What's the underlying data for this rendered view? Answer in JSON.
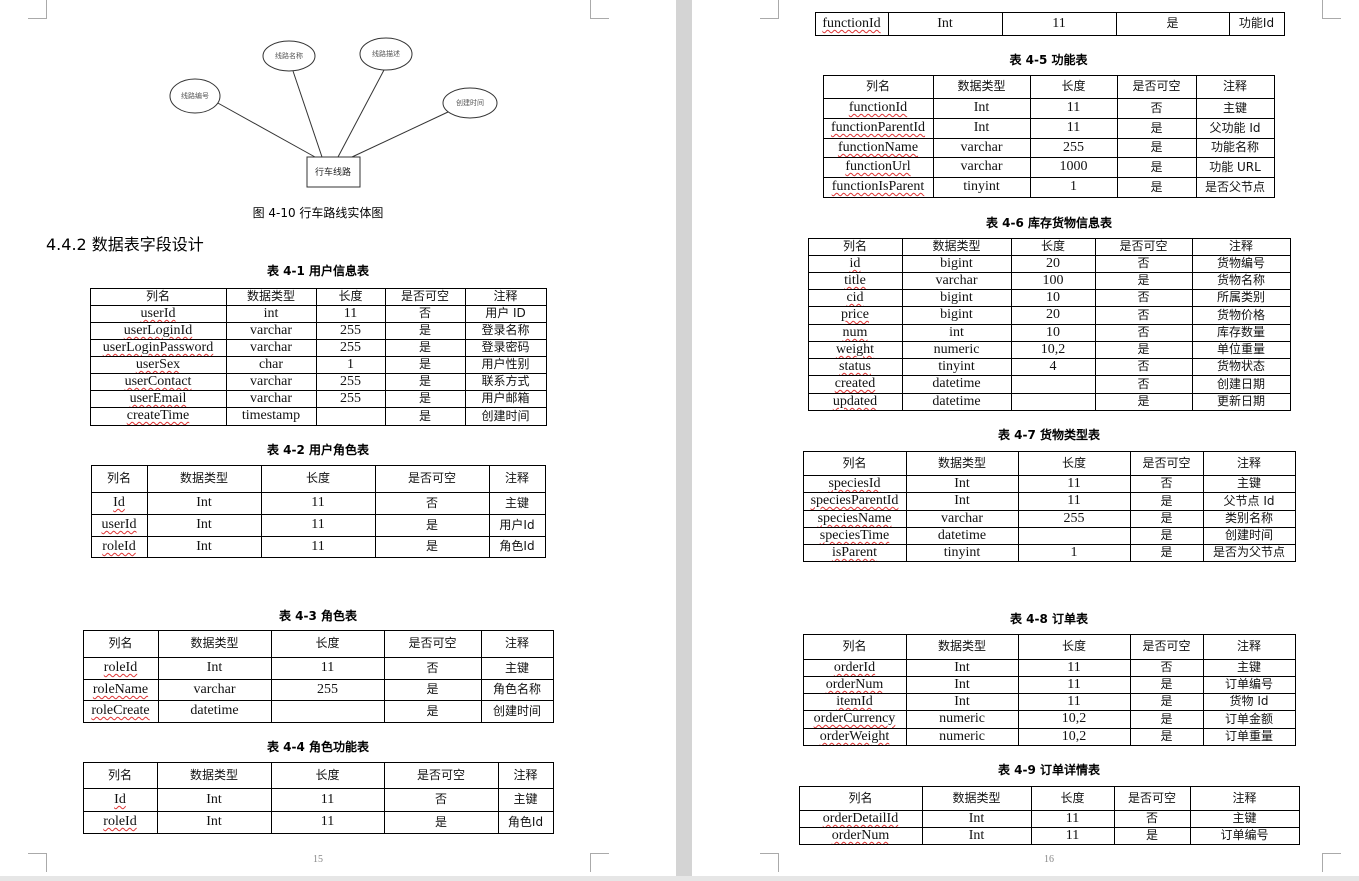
{
  "pages": [
    {
      "diagram": {
        "attributes": [
          "线路编号",
          "线路名称",
          "线路描述",
          "创建时间"
        ],
        "entity": "行车线路",
        "caption": "图 4-10 行车路线实体图"
      },
      "heading": "4.4.2 数据表字段设计",
      "tables": [
        {
          "caption": "表 4-1 用户信息表",
          "header": [
            "列名",
            "数据类型",
            "长度",
            "是否可空",
            "注释"
          ],
          "rows": [
            [
              "userId",
              "int",
              "11",
              "否",
              "用户 ID"
            ],
            [
              "userLoginId",
              "varchar",
              "255",
              "是",
              "登录名称"
            ],
            [
              "userLoginPassword",
              "varchar",
              "255",
              "是",
              "登录密码"
            ],
            [
              "userSex",
              "char",
              "1",
              "是",
              "用户性别"
            ],
            [
              "userContact",
              "varchar",
              "255",
              "是",
              "联系方式"
            ],
            [
              "userEmail",
              "varchar",
              "255",
              "是",
              "用户邮箱"
            ],
            [
              "createTime",
              "timestamp",
              null,
              "是",
              "创建时间"
            ]
          ]
        },
        {
          "caption": "表 4-2 用户角色表",
          "header": [
            "列名",
            "数据类型",
            "长度",
            "是否可空",
            "注释"
          ],
          "rows": [
            [
              "Id",
              "Int",
              "11",
              "否",
              "主键"
            ],
            [
              "userId",
              "Int",
              "11",
              "是",
              "用户Id"
            ],
            [
              "roleId",
              "Int",
              "11",
              "是",
              "角色Id"
            ]
          ]
        },
        {
          "caption": "表 4-3 角色表",
          "header": [
            "列名",
            "数据类型",
            "长度",
            "是否可空",
            "注释"
          ],
          "rows": [
            [
              "roleId",
              "Int",
              "11",
              "否",
              "主键"
            ],
            [
              "roleName",
              "varchar",
              "255",
              "是",
              "角色名称"
            ],
            [
              "roleCreate",
              "datetime",
              null,
              "是",
              "创建时间"
            ]
          ]
        },
        {
          "caption": "表 4-4 角色功能表",
          "header": [
            "列名",
            "数据类型",
            "长度",
            "是否可空",
            "注释"
          ],
          "rows": [
            [
              "Id",
              "Int",
              "11",
              "否",
              "主键"
            ],
            [
              "roleId",
              "Int",
              "11",
              "是",
              "角色Id"
            ]
          ]
        }
      ],
      "page_number": "15"
    },
    {
      "tables": [
        {
          "rows": [
            [
              "functionId",
              "Int",
              "11",
              "是",
              "功能Id"
            ]
          ]
        },
        {
          "caption": "表 4-5 功能表",
          "header": [
            "列名",
            "数据类型",
            "长度",
            "是否可空",
            "注释"
          ],
          "rows": [
            [
              "functionId",
              "Int",
              "11",
              "否",
              "主键"
            ],
            [
              "functionParentId",
              "Int",
              "11",
              "是",
              "父功能 Id"
            ],
            [
              "functionName",
              "varchar",
              "255",
              "是",
              "功能名称"
            ],
            [
              "functionUrl",
              "varchar",
              "1000",
              "是",
              "功能 URL"
            ],
            [
              "functionIsParent",
              "tinyint",
              "1",
              "是",
              "是否父节点"
            ]
          ]
        },
        {
          "caption": "表 4-6 库存货物信息表",
          "header": [
            "列名",
            "数据类型",
            "长度",
            "是否可空",
            "注释"
          ],
          "rows": [
            [
              "id",
              "bigint",
              "20",
              "否",
              "货物编号"
            ],
            [
              "title",
              "varchar",
              "100",
              "是",
              "货物名称"
            ],
            [
              "cid",
              "bigint",
              "10",
              "否",
              "所属类别"
            ],
            [
              "price",
              "bigint",
              "20",
              "否",
              "货物价格"
            ],
            [
              "num",
              "int",
              "10",
              "否",
              "库存数量"
            ],
            [
              "weight",
              "numeric",
              "10,2",
              "是",
              "单位重量"
            ],
            [
              "status",
              "tinyint",
              "4",
              "否",
              "货物状态"
            ],
            [
              "created",
              "datetime",
              null,
              "否",
              "创建日期"
            ],
            [
              "updated",
              "datetime",
              null,
              "是",
              "更新日期"
            ]
          ]
        },
        {
          "caption": "表 4-7 货物类型表",
          "header": [
            "列名",
            "数据类型",
            "长度",
            "是否可空",
            "注释"
          ],
          "rows": [
            [
              "speciesId",
              "Int",
              "11",
              "否",
              "主键"
            ],
            [
              "speciesParentId",
              "Int",
              "11",
              "是",
              "父节点 Id"
            ],
            [
              "speciesName",
              "varchar",
              "255",
              "是",
              "类别名称"
            ],
            [
              "speciesTime",
              "datetime",
              null,
              "是",
              "创建时间"
            ],
            [
              "isParent",
              "tinyint",
              "1",
              "是",
              "是否为父节点"
            ]
          ]
        },
        {
          "caption": "表 4-8 订单表",
          "header": [
            "列名",
            "数据类型",
            "长度",
            "是否可空",
            "注释"
          ],
          "rows": [
            [
              "orderId",
              "Int",
              "11",
              "否",
              "主键"
            ],
            [
              "orderNum",
              "Int",
              "11",
              "是",
              "订单编号"
            ],
            [
              "itemId",
              "Int",
              "11",
              "是",
              "货物 Id"
            ],
            [
              "orderCurrency",
              "numeric",
              "10,2",
              "是",
              "订单金额"
            ],
            [
              "orderWeight",
              "numeric",
              "10,2",
              "是",
              "订单重量"
            ]
          ]
        },
        {
          "caption": "表 4-9 订单详情表",
          "header": [
            "列名",
            "数据类型",
            "长度",
            "是否可空",
            "注释"
          ],
          "rows": [
            [
              "orderDetailId",
              "Int",
              "11",
              "否",
              "主键"
            ],
            [
              "orderNum",
              "Int",
              "11",
              "是",
              "订单编号"
            ]
          ]
        }
      ],
      "page_number": "16"
    }
  ]
}
